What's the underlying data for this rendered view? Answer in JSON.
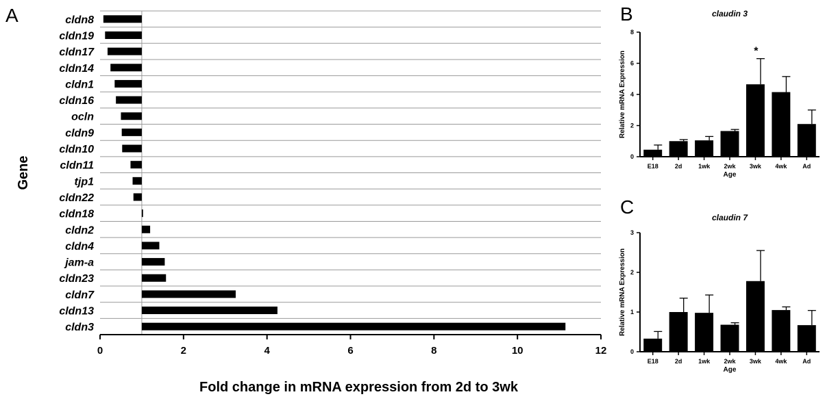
{
  "chart_data": [
    {
      "panel": "A",
      "type": "bar",
      "orientation": "horizontal",
      "title": "",
      "xlabel": "Fold change in mRNA expression from 2d to 3wk",
      "ylabel": "Gene",
      "baseline": 1,
      "xlim": [
        0,
        12
      ],
      "xticks": [
        "0",
        "2",
        "4",
        "6",
        "8",
        "10",
        "12"
      ],
      "grid": "horizontal separators between genes",
      "categories": [
        "cldn8",
        "cldn19",
        "cldn17",
        "cldn14",
        "cldn1",
        "cldn16",
        "ocln",
        "cldn9",
        "cldn10",
        "cldn11",
        "tjp1",
        "cldn22",
        "cldn18",
        "cldn2",
        "cldn4",
        "jam-a",
        "cldn23",
        "cldn7",
        "cldn13",
        "cldn3"
      ],
      "values": [
        0.08,
        0.12,
        0.18,
        0.25,
        0.35,
        0.38,
        0.5,
        0.52,
        0.53,
        0.73,
        0.78,
        0.8,
        1.03,
        1.2,
        1.42,
        1.55,
        1.58,
        3.25,
        4.25,
        11.15
      ]
    },
    {
      "panel": "B",
      "type": "bar",
      "title": "claudin 3",
      "xlabel": "Age",
      "ylabel": "Relative mRNA Expression",
      "ylim": [
        0,
        8
      ],
      "yticks": [
        "0",
        "2",
        "4",
        "6",
        "8"
      ],
      "categories": [
        "E18",
        "2d",
        "1wk",
        "2wk",
        "3wk",
        "4wk",
        "Ad"
      ],
      "values": [
        0.45,
        1.0,
        1.05,
        1.65,
        4.65,
        4.15,
        2.1
      ],
      "errors": [
        0.3,
        0.1,
        0.25,
        0.1,
        1.65,
        1.0,
        0.9
      ],
      "annotations": [
        {
          "category": "3wk",
          "text": "*"
        }
      ]
    },
    {
      "panel": "C",
      "type": "bar",
      "title": "claudin 7",
      "xlabel": "Age",
      "ylabel": "Relative mRNA Expression",
      "ylim": [
        0,
        3
      ],
      "yticks": [
        "0",
        "1",
        "2",
        "3"
      ],
      "categories": [
        "E18",
        "2d",
        "1wk",
        "2wk",
        "3wk",
        "4wk",
        "Ad"
      ],
      "values": [
        0.33,
        1.0,
        0.98,
        0.68,
        1.78,
        1.05,
        0.67
      ],
      "errors": [
        0.18,
        0.35,
        0.45,
        0.05,
        0.77,
        0.08,
        0.37
      ],
      "annotations": []
    }
  ],
  "panel_letters": {
    "a": "A",
    "b": "B",
    "c": "C"
  }
}
